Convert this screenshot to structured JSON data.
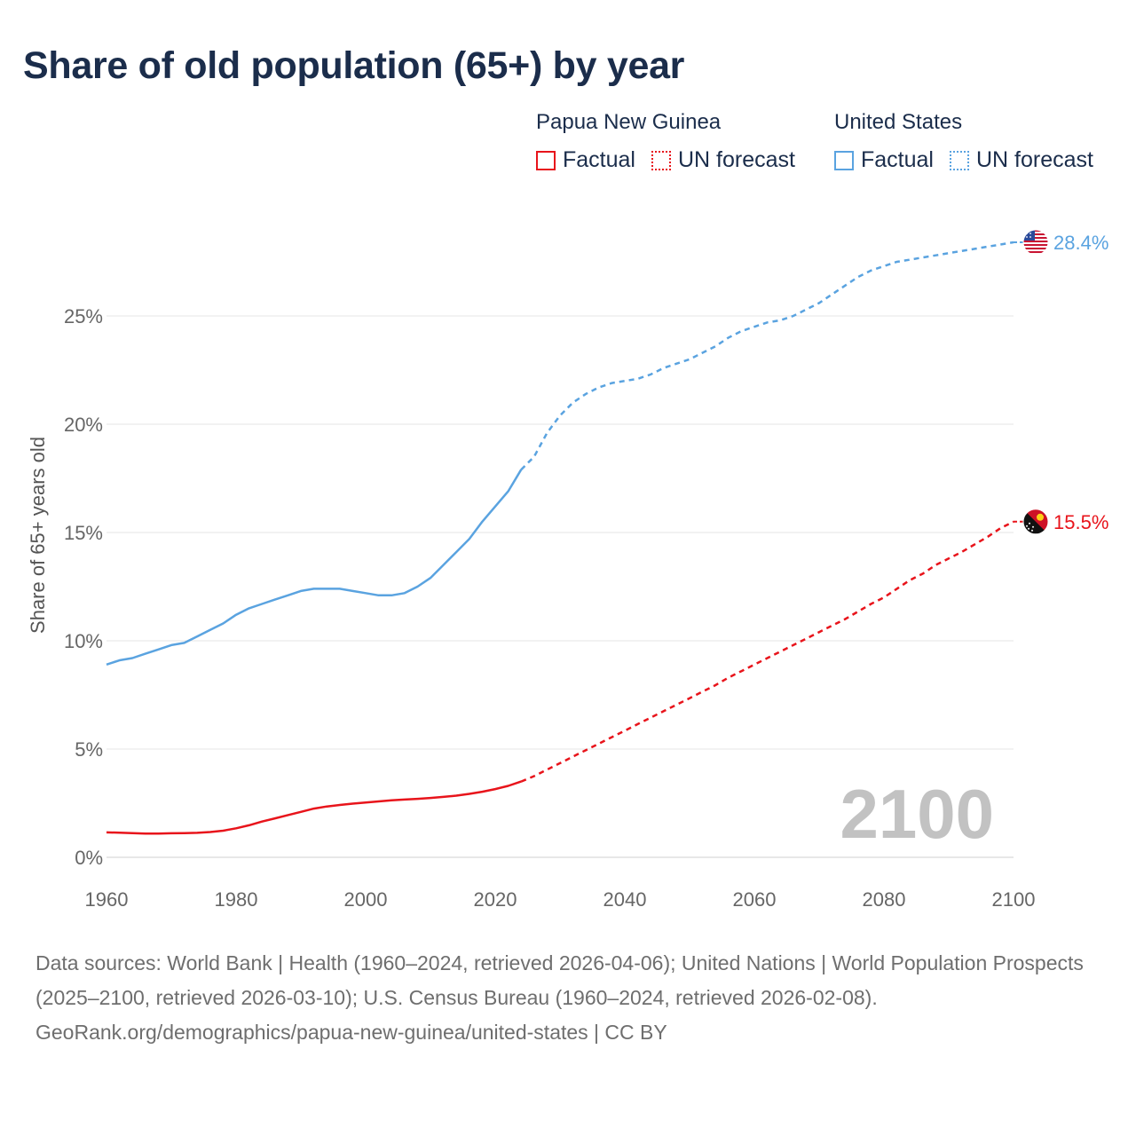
{
  "title": "Share of old population (65+) by year",
  "legend": {
    "groups": [
      {
        "name": "Papua New Guinea",
        "color": "#e8141b",
        "factual_label": "Factual",
        "forecast_label": "UN forecast"
      },
      {
        "name": "United States",
        "color": "#5aa3e0",
        "factual_label": "Factual",
        "forecast_label": "UN forecast"
      }
    ]
  },
  "year_overlay": "2100",
  "footer": {
    "sources": "Data sources: World Bank | Health (1960–2024, retrieved 2026-04-06); United Nations | World Population Prospects (2025–2100, retrieved 2026-03-10); U.S. Census Bureau (1960–2024, retrieved 2026-02-08).",
    "credit": "GeoRank.org/demographics/papua-new-guinea/united-states | CC BY"
  },
  "chart_data": {
    "type": "line",
    "title": "Share of old population (65+) by year",
    "xlabel": "",
    "ylabel": "Share of 65+ years old",
    "xlim": [
      1960,
      2100
    ],
    "ylim": [
      0,
      30
    ],
    "x_ticks": [
      1960,
      1980,
      2000,
      2020,
      2040,
      2060,
      2080,
      2100
    ],
    "y_ticks": [
      0,
      5,
      10,
      15,
      20,
      25
    ],
    "x_tick_labels": [
      "1960",
      "1980",
      "2000",
      "2020",
      "2040",
      "2060",
      "2080",
      "2100"
    ],
    "y_tick_labels": [
      "0%",
      "5%",
      "10%",
      "15%",
      "20%",
      "25%"
    ],
    "grid": true,
    "factual_until": 2024,
    "series": [
      {
        "name": "United States",
        "color": "#5aa3e0",
        "end_label": "28.4%",
        "flag": "us-flag",
        "points": [
          [
            1960,
            8.9
          ],
          [
            1962,
            9.1
          ],
          [
            1964,
            9.2
          ],
          [
            1966,
            9.4
          ],
          [
            1968,
            9.6
          ],
          [
            1970,
            9.8
          ],
          [
            1972,
            9.9
          ],
          [
            1974,
            10.2
          ],
          [
            1976,
            10.5
          ],
          [
            1978,
            10.8
          ],
          [
            1980,
            11.2
          ],
          [
            1982,
            11.5
          ],
          [
            1984,
            11.7
          ],
          [
            1986,
            11.9
          ],
          [
            1988,
            12.1
          ],
          [
            1990,
            12.3
          ],
          [
            1992,
            12.4
          ],
          [
            1994,
            12.4
          ],
          [
            1996,
            12.4
          ],
          [
            1998,
            12.3
          ],
          [
            2000,
            12.2
          ],
          [
            2002,
            12.1
          ],
          [
            2004,
            12.1
          ],
          [
            2006,
            12.2
          ],
          [
            2008,
            12.5
          ],
          [
            2010,
            12.9
          ],
          [
            2012,
            13.5
          ],
          [
            2014,
            14.1
          ],
          [
            2016,
            14.7
          ],
          [
            2018,
            15.5
          ],
          [
            2020,
            16.2
          ],
          [
            2022,
            16.9
          ],
          [
            2024,
            17.9
          ],
          [
            2026,
            18.5
          ],
          [
            2028,
            19.6
          ],
          [
            2030,
            20.4
          ],
          [
            2032,
            21.0
          ],
          [
            2034,
            21.4
          ],
          [
            2036,
            21.7
          ],
          [
            2038,
            21.9
          ],
          [
            2040,
            22.0
          ],
          [
            2042,
            22.1
          ],
          [
            2044,
            22.3
          ],
          [
            2046,
            22.6
          ],
          [
            2048,
            22.8
          ],
          [
            2050,
            23.0
          ],
          [
            2052,
            23.3
          ],
          [
            2054,
            23.6
          ],
          [
            2056,
            24.0
          ],
          [
            2058,
            24.3
          ],
          [
            2060,
            24.5
          ],
          [
            2062,
            24.7
          ],
          [
            2064,
            24.8
          ],
          [
            2066,
            25.0
          ],
          [
            2068,
            25.3
          ],
          [
            2070,
            25.6
          ],
          [
            2072,
            26.0
          ],
          [
            2074,
            26.4
          ],
          [
            2076,
            26.8
          ],
          [
            2078,
            27.1
          ],
          [
            2080,
            27.3
          ],
          [
            2082,
            27.5
          ],
          [
            2084,
            27.6
          ],
          [
            2086,
            27.7
          ],
          [
            2088,
            27.8
          ],
          [
            2090,
            27.9
          ],
          [
            2092,
            28.0
          ],
          [
            2094,
            28.1
          ],
          [
            2096,
            28.2
          ],
          [
            2098,
            28.3
          ],
          [
            2100,
            28.4
          ]
        ]
      },
      {
        "name": "Papua New Guinea",
        "color": "#e8141b",
        "end_label": "15.5%",
        "flag": "png-flag",
        "points": [
          [
            1960,
            1.15
          ],
          [
            1962,
            1.14
          ],
          [
            1964,
            1.12
          ],
          [
            1966,
            1.1
          ],
          [
            1968,
            1.1
          ],
          [
            1970,
            1.11
          ],
          [
            1972,
            1.12
          ],
          [
            1974,
            1.13
          ],
          [
            1976,
            1.17
          ],
          [
            1978,
            1.23
          ],
          [
            1980,
            1.34
          ],
          [
            1982,
            1.48
          ],
          [
            1984,
            1.65
          ],
          [
            1986,
            1.8
          ],
          [
            1988,
            1.95
          ],
          [
            1990,
            2.1
          ],
          [
            1992,
            2.25
          ],
          [
            1994,
            2.35
          ],
          [
            1996,
            2.42
          ],
          [
            1998,
            2.48
          ],
          [
            2000,
            2.53
          ],
          [
            2002,
            2.58
          ],
          [
            2004,
            2.63
          ],
          [
            2006,
            2.67
          ],
          [
            2008,
            2.7
          ],
          [
            2010,
            2.74
          ],
          [
            2012,
            2.79
          ],
          [
            2014,
            2.85
          ],
          [
            2016,
            2.93
          ],
          [
            2018,
            3.03
          ],
          [
            2020,
            3.15
          ],
          [
            2022,
            3.3
          ],
          [
            2024,
            3.5
          ],
          [
            2026,
            3.75
          ],
          [
            2028,
            4.05
          ],
          [
            2030,
            4.35
          ],
          [
            2032,
            4.65
          ],
          [
            2034,
            4.95
          ],
          [
            2036,
            5.25
          ],
          [
            2038,
            5.55
          ],
          [
            2040,
            5.85
          ],
          [
            2042,
            6.15
          ],
          [
            2044,
            6.45
          ],
          [
            2046,
            6.75
          ],
          [
            2048,
            7.05
          ],
          [
            2050,
            7.35
          ],
          [
            2052,
            7.65
          ],
          [
            2054,
            7.95
          ],
          [
            2056,
            8.3
          ],
          [
            2058,
            8.6
          ],
          [
            2060,
            8.9
          ],
          [
            2062,
            9.2
          ],
          [
            2064,
            9.5
          ],
          [
            2066,
            9.8
          ],
          [
            2068,
            10.1
          ],
          [
            2070,
            10.4
          ],
          [
            2072,
            10.7
          ],
          [
            2074,
            11.0
          ],
          [
            2076,
            11.35
          ],
          [
            2078,
            11.7
          ],
          [
            2080,
            12.0
          ],
          [
            2082,
            12.4
          ],
          [
            2084,
            12.8
          ],
          [
            2086,
            13.1
          ],
          [
            2088,
            13.5
          ],
          [
            2090,
            13.8
          ],
          [
            2092,
            14.1
          ],
          [
            2094,
            14.45
          ],
          [
            2096,
            14.8
          ],
          [
            2098,
            15.2
          ],
          [
            2100,
            15.5
          ]
        ]
      }
    ]
  }
}
